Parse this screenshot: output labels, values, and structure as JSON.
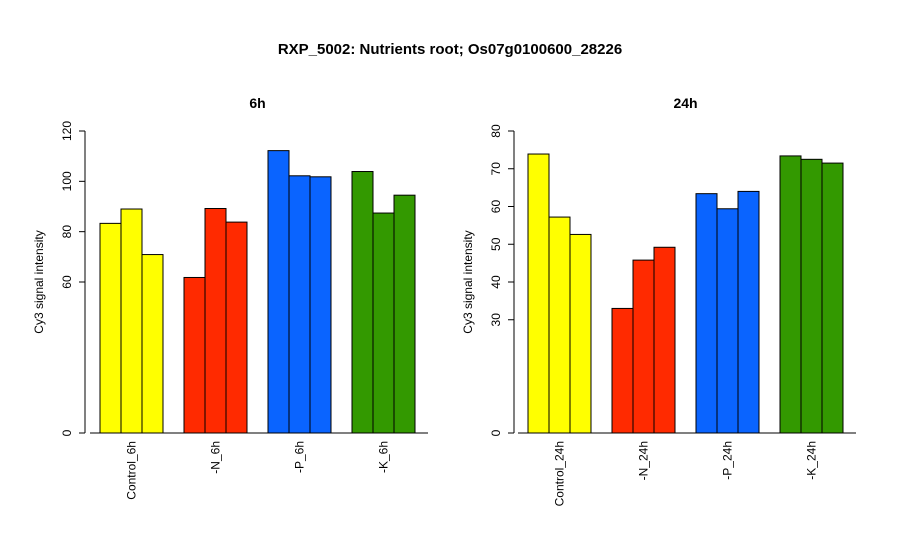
{
  "title": "RXP_5002: Nutrients root; Os07g0100600_28226",
  "chart_data": [
    {
      "type": "bar",
      "title": "6h",
      "ylabel": "Cy3 signal intensity",
      "categories": [
        "Control_6h",
        "-N_6h",
        "-P_6h",
        "-K_6h"
      ],
      "colors": [
        "#ffff00",
        "#ff2a00",
        "#0a64ff",
        "#339900"
      ],
      "values": [
        [
          83.3,
          89,
          70.9
        ],
        [
          61.8,
          89.2,
          83.8
        ],
        [
          112.2,
          102.2,
          101.8
        ],
        [
          103.9,
          87.4,
          94.5
        ]
      ],
      "yticks": [
        0,
        60,
        80,
        100,
        120
      ],
      "ylim": [
        0,
        120
      ]
    },
    {
      "type": "bar",
      "title": "24h",
      "ylabel": "Cy3 signal intensity",
      "categories": [
        "Control_24h",
        "-N_24h",
        "-P_24h",
        "-K_24h"
      ],
      "colors": [
        "#ffff00",
        "#ff2a00",
        "#0a64ff",
        "#339900"
      ],
      "values": [
        [
          73.9,
          57.2,
          52.6
        ],
        [
          33,
          45.8,
          49.2
        ],
        [
          63.4,
          59.4,
          64
        ],
        [
          73.4,
          72.5,
          71.5
        ]
      ],
      "yticks": [
        0,
        30,
        40,
        50,
        60,
        70,
        80
      ],
      "ylim": [
        0,
        80
      ]
    }
  ]
}
